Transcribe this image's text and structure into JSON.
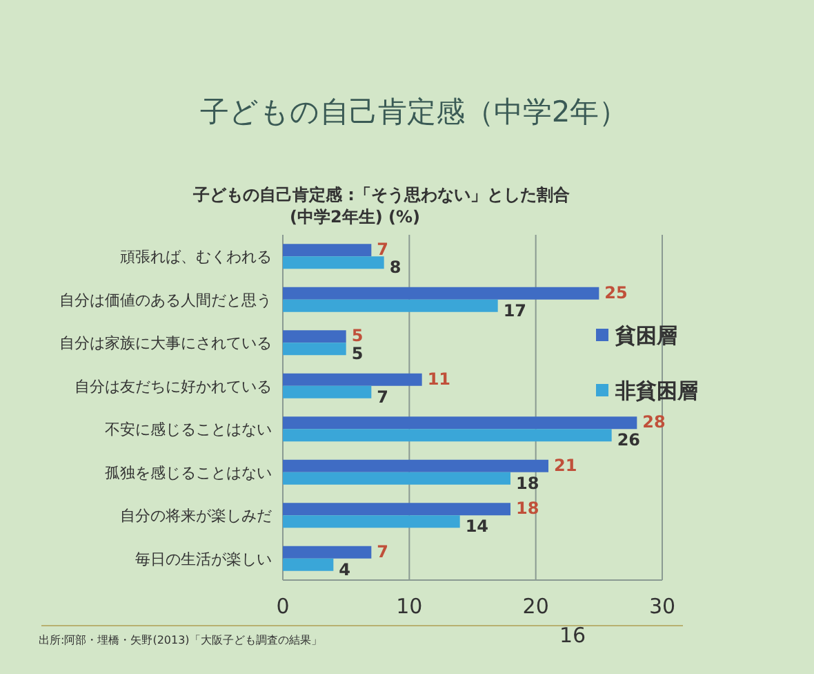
{
  "chart_data": {
    "type": "bar",
    "orientation": "horizontal",
    "title": "子どもの自己肯定感（中学2年）",
    "subtitle": "子どもの自己肯定感 :「そう思わない」とした割合\n(中学2年生) (%)",
    "categories": [
      "頑張れば、むくわれる",
      "自分は価値のある人間だと思う",
      "自分は家族に大事にされている",
      "自分は友だちに好かれている",
      "不安に感じることはない",
      "孤独を感じることはない",
      "自分の将来が楽しみだ",
      "毎日の生活が楽しい"
    ],
    "series": [
      {
        "name": "貧困層",
        "color": "#3f6cc4",
        "values": [
          7,
          25,
          5,
          11,
          28,
          21,
          18,
          7
        ]
      },
      {
        "name": "非貧困層",
        "color": "#3aa6d8",
        "values": [
          8,
          17,
          5,
          7,
          26,
          18,
          14,
          4
        ]
      }
    ],
    "xlim": [
      0,
      30
    ],
    "xticks": [
      0,
      10,
      20,
      30
    ],
    "grid": "x",
    "legend": "right",
    "data_labels": true,
    "annotations": [
      "出所:阿部・埋橋・矢野(2013)「大阪子ども調査の結果」",
      "16"
    ]
  }
}
